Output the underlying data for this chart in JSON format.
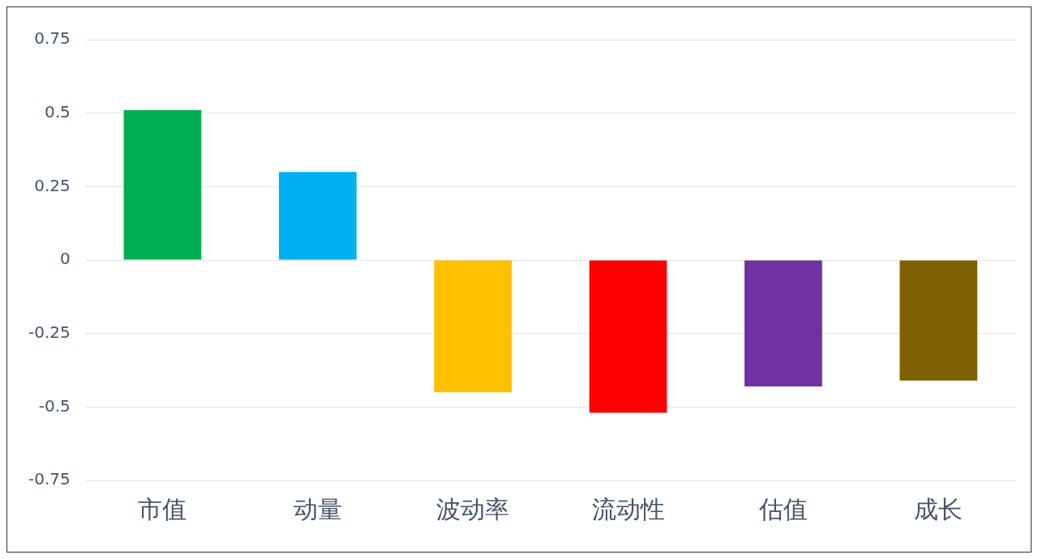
{
  "chart_data": {
    "type": "bar",
    "categories": [
      "市值",
      "动量",
      "波动率",
      "流动性",
      "估值",
      "成长"
    ],
    "values": [
      0.51,
      0.3,
      -0.45,
      -0.52,
      -0.43,
      -0.41
    ],
    "colors": [
      "#00b050",
      "#00b0f0",
      "#ffc000",
      "#ff0000",
      "#7030a0",
      "#7f6000"
    ],
    "ylim": [
      -0.75,
      0.75
    ],
    "yticks": [
      -0.75,
      -0.5,
      -0.25,
      0,
      0.25,
      0.5,
      0.75
    ],
    "grid": "y",
    "legend": false
  }
}
